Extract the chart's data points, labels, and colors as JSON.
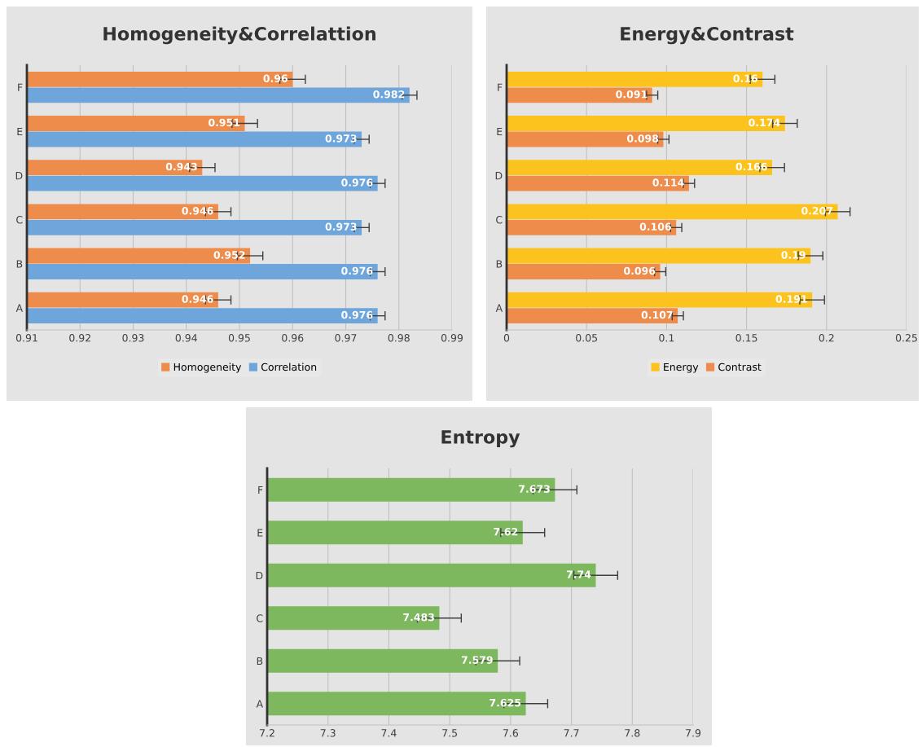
{
  "chart_data": [
    {
      "type": "bar",
      "title": "Homogeneity&Correlattion",
      "orientation": "horizontal",
      "categories": [
        "F",
        "E",
        "D",
        "C",
        "B",
        "A"
      ],
      "xlim": [
        0.91,
        0.99
      ],
      "xticks": [
        0.91,
        0.92,
        0.93,
        0.94,
        0.95,
        0.96,
        0.97,
        0.98,
        0.99
      ],
      "grid": "x",
      "legend": "bottom",
      "data_labels": true,
      "series": [
        {
          "name": "Homogeneity",
          "color": "#ee8c4c",
          "values": [
            0.96,
            0.951,
            0.943,
            0.946,
            0.952,
            0.946
          ],
          "errors": [
            0.0024,
            0.0024,
            0.0024,
            0.0024,
            0.0024,
            0.0024
          ]
        },
        {
          "name": "Correlation",
          "color": "#6ea6db",
          "values": [
            0.982,
            0.973,
            0.976,
            0.973,
            0.976,
            0.976
          ],
          "errors": [
            0.0014,
            0.0014,
            0.0014,
            0.0014,
            0.0014,
            0.0014
          ]
        }
      ]
    },
    {
      "type": "bar",
      "title": "Energy&Contrast",
      "orientation": "horizontal",
      "categories": [
        "F",
        "E",
        "D",
        "C",
        "B",
        "A"
      ],
      "xlim": [
        0,
        0.25
      ],
      "xticks": [
        0,
        0.05,
        0.1,
        0.15,
        0.2,
        0.25
      ],
      "grid": "x",
      "legend": "bottom",
      "data_labels": true,
      "series": [
        {
          "name": "Energy",
          "color": "#fcc31f",
          "values": [
            0.16,
            0.174,
            0.166,
            0.207,
            0.19,
            0.191
          ],
          "errors": [
            0.0077,
            0.0077,
            0.0077,
            0.0077,
            0.0077,
            0.0077
          ]
        },
        {
          "name": "Contrast",
          "color": "#ee8c4c",
          "values": [
            0.091,
            0.098,
            0.114,
            0.106,
            0.096,
            0.107
          ],
          "errors": [
            0.0035,
            0.0035,
            0.0035,
            0.0035,
            0.0035,
            0.0035
          ]
        }
      ]
    },
    {
      "type": "bar",
      "title": "Entropy",
      "orientation": "horizontal",
      "categories": [
        "F",
        "E",
        "D",
        "C",
        "B",
        "A"
      ],
      "xlim": [
        7.2,
        7.9
      ],
      "xticks": [
        7.2,
        7.3,
        7.4,
        7.5,
        7.6,
        7.7,
        7.8,
        7.9
      ],
      "grid": "x",
      "data_labels": true,
      "series": [
        {
          "color": "#7db75e",
          "values": [
            7.673,
            7.62,
            7.74,
            7.483,
            7.579,
            7.625
          ],
          "errors": [
            0.036,
            0.036,
            0.036,
            0.036,
            0.036,
            0.036
          ]
        }
      ]
    }
  ]
}
